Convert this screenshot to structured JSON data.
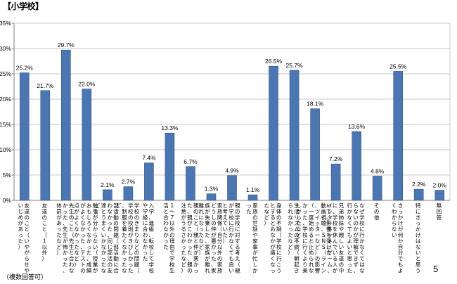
{
  "title": "【小学校】",
  "footnote": "（複数回答可）",
  "page_number": "5",
  "colors": {
    "bar": "#4a77b4",
    "bar_edge": "#2f5a91",
    "grid": "#c8c8c8",
    "axis": "#7f7f7f"
  },
  "chart_data": {
    "type": "bar",
    "title": "",
    "xlabel": "",
    "ylabel": "",
    "ylim": [
      0,
      35
    ],
    "ytick_step": 5,
    "ytick_format": "percent",
    "grid": true,
    "categories": [
      "友達のこと（いやがらせやいじめがあった）",
      "友達のこと（１以外）",
      "先生のこと（先生と合わなかった、先生が怖かった、体罰があったなど）",
      "勉強が分からない（授業がおもしろくなかった、成績がよくなかった、テストの点がよくなかったなど）",
      "部活動の問題（部活動に合わなかった、同じ部活の友達とうまくいかなかったなど）",
      "学校のきまりなどの問題（学校の校則がきびしかった、制服を着たくなかったなど）",
      "入学、進級、転校して学校や学級に合わなかった",
      "１〜７以外の理由で学校生活と合わなかった",
      "親のこと（親と仲が悪かった、親がこわかった、親の注意がうるさかったなど）",
      "家族関係（自分以外の家族どうしの仲が悪かった、家族が失業した、家族が離れ離れになったなど）",
      "親の学校に対する考え（親が学校に行かなくても良いと考えていた）",
      "家族の世話や家事が忙しかった",
      "身体の不調（学校に行こうとするとおなかが痛くなったなど）",
      "生活リズムの不調（朝起きられなかったなど）",
      "インターネット、ゲーム、動画視聴、SNS（ライン、ツイッターなど）の影響（一度始めると止められなかった、学校に行くより楽しかったなど）",
      "兄弟姉妹や親しい友達の中に、学校を休んでいる人がいて、影響を受けた",
      "なぜ学校に行かなくてはならないのかが理解できず、行かなくてもよいと思った",
      "その他",
      "きっかけが何か自分でもよくわからない",
      "特にきっかけはないと思う",
      "無回答"
    ],
    "values": [
      25.2,
      21.7,
      29.7,
      22.0,
      2.1,
      2.7,
      7.4,
      13.3,
      6.7,
      1.3,
      4.9,
      1.1,
      26.5,
      25.7,
      18.1,
      7.2,
      13.6,
      4.8,
      25.5,
      2.2,
      2.0
    ],
    "data_labels": [
      "25.2%",
      "21.7%",
      "29.7%",
      "22.0%",
      "2.1%",
      "2.7%",
      "7.4%",
      "13.3%",
      "6.7%",
      "1.3%",
      "4.9%",
      "1.1%",
      "26.5%",
      "25.7%",
      "18.1%",
      "7.2%",
      "13.6%",
      "4.8%",
      "25.5%",
      "2.2%",
      "2.0%"
    ],
    "category_label_style": "vertical"
  }
}
